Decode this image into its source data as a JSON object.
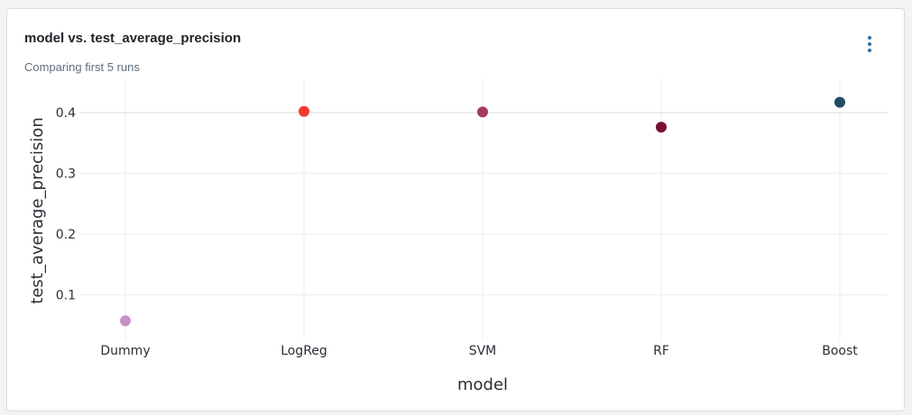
{
  "panel": {
    "title": "model vs. test_average_precision",
    "subtitle": "Comparing first 5 runs",
    "menu_icon": "more-vertical-icon"
  },
  "chart_data": {
    "type": "scatter",
    "categories": [
      "Dummy",
      "LogReg",
      "SVM",
      "RF",
      "Boost"
    ],
    "values": [
      0.057,
      0.402,
      0.401,
      0.376,
      0.417
    ],
    "point_colors": [
      "#c58fc8",
      "#f23a2f",
      "#a63b5a",
      "#7a1033",
      "#1d4d62"
    ],
    "xlabel": "model",
    "ylabel": "test_average_precision",
    "yticks": [
      0.1,
      0.2,
      0.3,
      0.4
    ],
    "ylim": [
      0.025,
      0.455
    ],
    "grid": true
  }
}
